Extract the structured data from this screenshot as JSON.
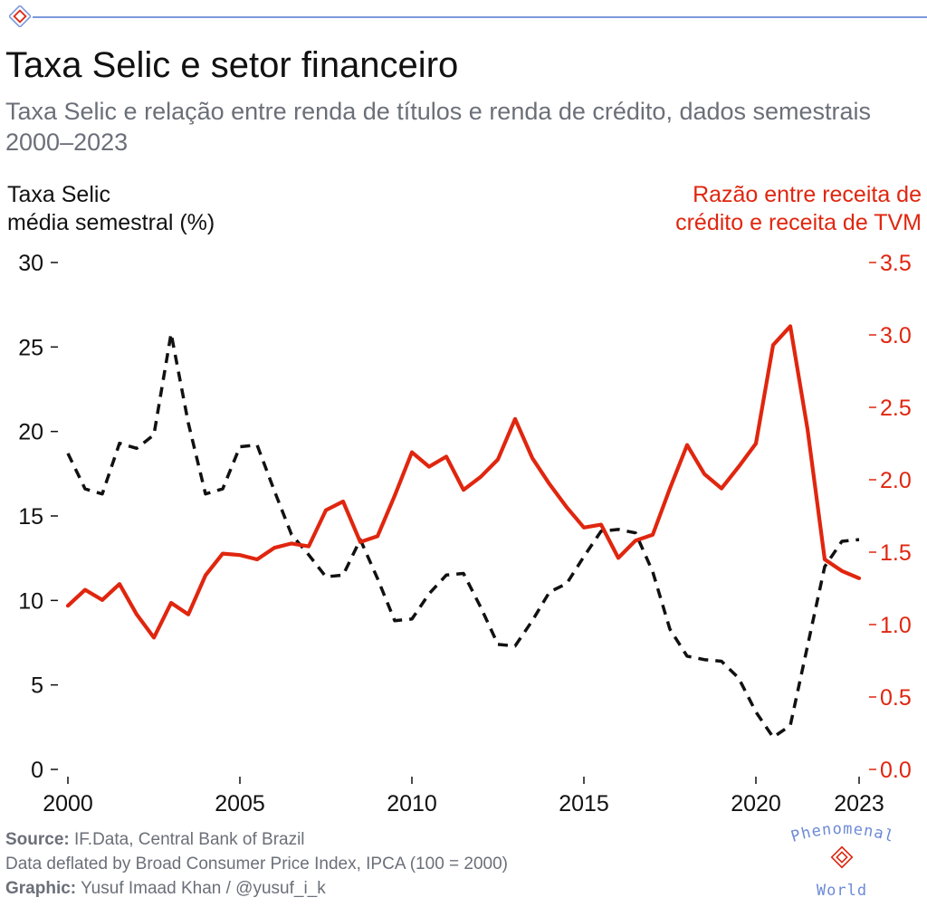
{
  "header": {
    "title": "Taxa Selic e setor financeiro",
    "subtitle": "Taxa Selic e relação entre renda de títulos e renda de crédito, dados semestrais 2000–2023"
  },
  "axes": {
    "left_label_line1": "Taxa Selic",
    "left_label_line2": "média semestral (%)",
    "right_label_line1": "Razão entre receita de",
    "right_label_line2": "crédito e receita de TVM"
  },
  "footer": {
    "source_label": "Source:",
    "source_text": "IF.Data, Central Bank of Brazil",
    "note": "Data deflated by Broad Consumer Price Index, IPCA (100 = 2000)",
    "graphic_label": "Graphic:",
    "graphic_text": "Yusuf Imaad Khan / @yusuf_i_k"
  },
  "brand": {
    "line1": "Phenomenal",
    "line2": "World"
  },
  "colors": {
    "selic": "#111111",
    "ratio": "#e0260f",
    "accent": "#7d98dc",
    "text_muted": "#6b6f78"
  },
  "chart_data": {
    "type": "line",
    "x_ticks": [
      "2000",
      "2005",
      "2010",
      "2015",
      "2020",
      "2023"
    ],
    "x_tick_values": [
      2000,
      2005,
      2010,
      2015,
      2020,
      2023
    ],
    "xlim": [
      2000,
      2023
    ],
    "y_left": {
      "ylim": [
        0,
        30
      ],
      "ticks": [
        0,
        5,
        10,
        15,
        20,
        25,
        30
      ],
      "tick_labels": [
        "0",
        "5",
        "10",
        "15",
        "20",
        "25",
        "30"
      ]
    },
    "y_right": {
      "ylim": [
        0,
        3.5
      ],
      "ticks": [
        0,
        0.5,
        1.0,
        1.5,
        2.0,
        2.5,
        3.0,
        3.5
      ],
      "tick_labels": [
        "0.0",
        "0.5",
        "1.0",
        "1.5",
        "2.0",
        "2.5",
        "3.0",
        "3.5"
      ]
    },
    "grid": false,
    "series": [
      {
        "axis": "left",
        "style": "dashed",
        "color": "#111111",
        "x": [
          2000,
          2000.5,
          2001,
          2001.5,
          2002,
          2002.5,
          2003,
          2003.5,
          2004,
          2004.5,
          2005,
          2005.5,
          2006,
          2006.5,
          2007,
          2007.5,
          2008,
          2008.5,
          2009,
          2009.5,
          2010,
          2010.5,
          2011,
          2011.5,
          2012,
          2012.5,
          2013,
          2013.5,
          2014,
          2014.5,
          2015,
          2015.5,
          2016,
          2016.5,
          2017,
          2017.5,
          2018,
          2018.5,
          2019,
          2019.5,
          2020,
          2020.5,
          2021,
          2021.5,
          2022,
          2022.5,
          2023
        ],
        "values": [
          18.7,
          16.6,
          16.3,
          19.3,
          19.0,
          19.8,
          25.8,
          20.5,
          16.3,
          16.6,
          19.1,
          19.2,
          16.5,
          13.9,
          12.7,
          11.4,
          11.5,
          13.6,
          11.3,
          8.8,
          8.9,
          10.4,
          11.5,
          11.6,
          9.6,
          7.4,
          7.3,
          8.8,
          10.5,
          11.0,
          12.6,
          14.1,
          14.2,
          14.0,
          11.7,
          8.3,
          6.7,
          6.5,
          6.4,
          5.4,
          3.4,
          1.9,
          2.6,
          7.3,
          12.0,
          13.5,
          13.6
        ]
      },
      {
        "axis": "right",
        "style": "solid",
        "color": "#e0260f",
        "x": [
          2000,
          2000.5,
          2001,
          2001.5,
          2002,
          2002.5,
          2003,
          2003.5,
          2004,
          2004.5,
          2005,
          2005.5,
          2006,
          2006.5,
          2007,
          2007.5,
          2008,
          2008.5,
          2009,
          2009.5,
          2010,
          2010.5,
          2011,
          2011.5,
          2012,
          2012.5,
          2013,
          2013.5,
          2014,
          2014.5,
          2015,
          2015.5,
          2016,
          2016.5,
          2017,
          2017.5,
          2018,
          2018.5,
          2019,
          2019.5,
          2020,
          2020.5,
          2021,
          2021.5,
          2022,
          2022.5,
          2023
        ],
        "values": [
          1.13,
          1.24,
          1.17,
          1.28,
          1.07,
          0.91,
          1.15,
          1.07,
          1.34,
          1.49,
          1.48,
          1.45,
          1.53,
          1.56,
          1.54,
          1.79,
          1.85,
          1.57,
          1.61,
          1.89,
          2.19,
          2.09,
          2.16,
          1.93,
          2.02,
          2.14,
          2.42,
          2.15,
          1.97,
          1.81,
          1.67,
          1.69,
          1.46,
          1.58,
          1.62,
          1.94,
          2.24,
          2.04,
          1.94,
          2.09,
          2.25,
          2.93,
          3.06,
          2.35,
          1.45,
          1.37,
          1.32
        ]
      }
    ]
  }
}
